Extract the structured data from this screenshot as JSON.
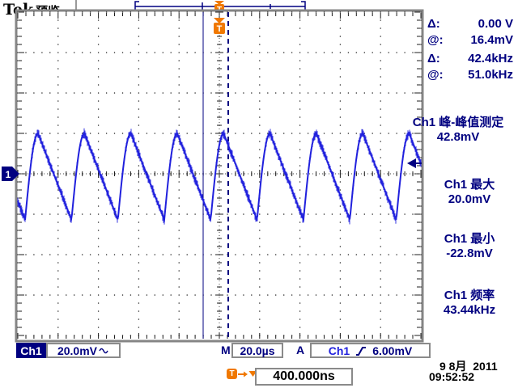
{
  "header": {
    "brand": "Tek",
    "mode": "预览"
  },
  "cursor_readout": {
    "rows": [
      {
        "label": "Δ:",
        "value": "0.00 V"
      },
      {
        "label": "@:",
        "value": "16.4mV"
      },
      {
        "label": "Δ:",
        "value": "42.4kHz"
      },
      {
        "label": "@:",
        "value": "51.0kHz"
      }
    ]
  },
  "measurements": [
    {
      "title": "Ch1 峰-峰值测定",
      "value": "42.8mV"
    },
    {
      "title": "Ch1 最大",
      "value": "20.0mV"
    },
    {
      "title": "Ch1 最小",
      "value": "-22.8mV"
    },
    {
      "title": "Ch1 频率",
      "value": "43.44kHz"
    }
  ],
  "channel": {
    "label": "Ch1",
    "number": "1",
    "scale": "20.0mV",
    "coupling_icon": "ac-sine"
  },
  "horizontal": {
    "label": "M",
    "scale": "20.0µs"
  },
  "trigger": {
    "label": "A",
    "source": "Ch1",
    "slope_icon": "rising-edge",
    "level": "6.00mV",
    "holdoff": "400.000ns",
    "marker_letter": "T"
  },
  "datetime": {
    "date": "9 8月  2011",
    "time": "09:52:52"
  },
  "waveform": {
    "shape": "noisy-ramp",
    "volts_per_div_mV": 20,
    "time_per_div_us": 20,
    "max_mV": 20.0,
    "min_mV": -22.8,
    "frequency_kHz": 43.44,
    "color": "#2020dd"
  },
  "colors": {
    "text_navy": "#000080",
    "trace_blue": "#2020dd",
    "accent_orange": "#f07800",
    "frame_gray": "#858585"
  }
}
